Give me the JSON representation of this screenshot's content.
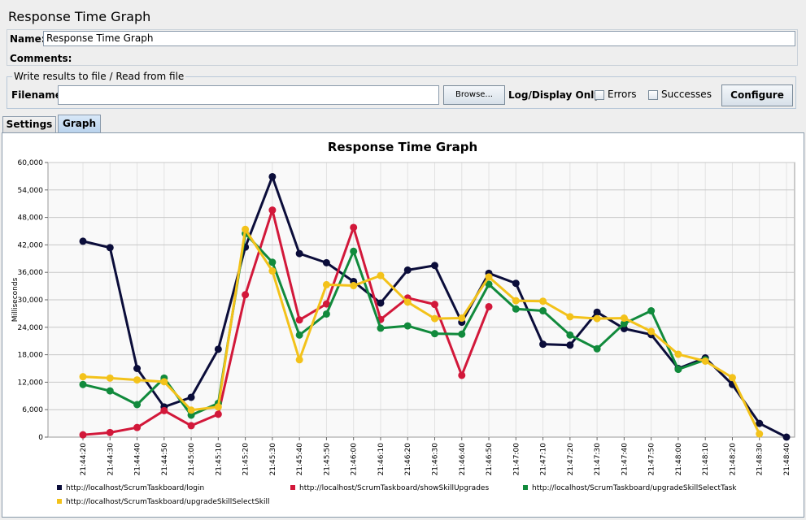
{
  "window": {
    "title": "Response Time Graph"
  },
  "form": {
    "name_label": "Name:",
    "name_value": "Response Time Graph",
    "comments_label": "Comments:",
    "file_group_label": "Write results to file / Read from file",
    "filename_label": "Filename",
    "filename_value": "",
    "browse_label": "Browse...",
    "log_display_label": "Log/Display Only:",
    "errors_label": "Errors",
    "successes_label": "Successes",
    "configure_label": "Configure"
  },
  "tabs": [
    {
      "label": "Settings",
      "active": false
    },
    {
      "label": "Graph",
      "active": true
    }
  ],
  "colors": {
    "login": "#0b0d3a",
    "showSkillUpgrades": "#d2183a",
    "upgradeSkillSelectTask": "#118a3c",
    "upgradeSkillSelectSkill": "#f3c21a"
  },
  "chart_data": {
    "type": "line",
    "title": "Response Time Graph",
    "xlabel": "",
    "ylabel": "Milliseconds",
    "ylim": [
      0,
      60000
    ],
    "yticks": [
      "0",
      "6,000",
      "12,000",
      "18,000",
      "24,000",
      "30,000",
      "36,000",
      "42,000",
      "48,000",
      "54,000",
      "60,000"
    ],
    "grid": true,
    "legend_position": "bottom",
    "categories": [
      "21:44:20",
      "21:44:30",
      "21:44:40",
      "21:44:50",
      "21:45:00",
      "21:45:10",
      "21:45:20",
      "21:45:30",
      "21:45:40",
      "21:45:50",
      "21:46:00",
      "21:46:10",
      "21:46:20",
      "21:46:30",
      "21:46:40",
      "21:46:50",
      "21:47:00",
      "21:47:10",
      "21:47:20",
      "21:47:30",
      "21:47:40",
      "21:47:50",
      "21:48:00",
      "21:48:10",
      "21:48:20",
      "21:48:30",
      "21:48:40"
    ],
    "series": [
      {
        "name": "http://localhost/ScrumTaskboard/login",
        "color": "#0b0d3a",
        "values": [
          42800,
          41400,
          15000,
          6600,
          8700,
          19200,
          41500,
          56900,
          40100,
          38100,
          34000,
          29300,
          36500,
          37500,
          25100,
          35800,
          33600,
          20300,
          20100,
          27300,
          23700,
          22400,
          15000,
          17300,
          11500,
          3000,
          0
        ]
      },
      {
        "name": "http://localhost/ScrumTaskboard/showSkillUpgrades",
        "color": "#d2183a",
        "values": [
          500,
          1000,
          2100,
          5800,
          2500,
          5000,
          31100,
          49600,
          25600,
          29100,
          45800,
          25700,
          30400,
          29000,
          13500,
          28500,
          null,
          null,
          null,
          null,
          null,
          null,
          null,
          null,
          null,
          null,
          null
        ]
      },
      {
        "name": "http://localhost/ScrumTaskboard/upgradeSkillSelectTask",
        "color": "#118a3c",
        "values": [
          11500,
          10100,
          7100,
          12900,
          4800,
          7400,
          44500,
          38200,
          22300,
          26900,
          40600,
          23800,
          24300,
          22600,
          22500,
          33400,
          28000,
          27600,
          22300,
          19300,
          24800,
          27600,
          14800,
          16900,
          null,
          null,
          null
        ]
      },
      {
        "name": "http://localhost/ScrumTaskboard/upgradeSkillSelectSkill",
        "color": "#f3c21a",
        "values": [
          13200,
          12900,
          12500,
          12100,
          5900,
          6600,
          45400,
          36300,
          16900,
          33300,
          33100,
          35300,
          29500,
          25900,
          26000,
          35000,
          29800,
          29700,
          26300,
          25900,
          26000,
          23100,
          18100,
          16600,
          13000,
          700,
          null
        ]
      }
    ]
  }
}
